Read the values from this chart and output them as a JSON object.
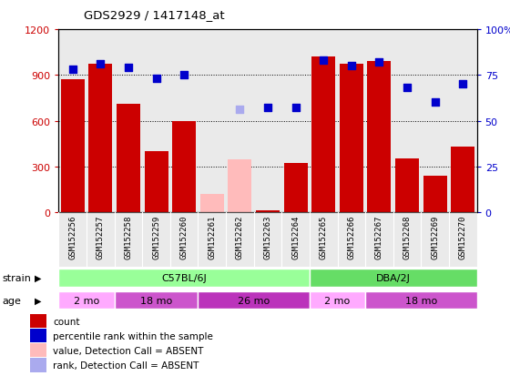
{
  "title": "GDS2929 / 1417148_at",
  "samples": [
    "GSM152256",
    "GSM152257",
    "GSM152258",
    "GSM152259",
    "GSM152260",
    "GSM152261",
    "GSM152262",
    "GSM152263",
    "GSM152264",
    "GSM152265",
    "GSM152266",
    "GSM152267",
    "GSM152268",
    "GSM152269",
    "GSM152270"
  ],
  "bar_values": [
    870,
    975,
    710,
    400,
    600,
    120,
    345,
    10,
    320,
    1020,
    975,
    990,
    350,
    240,
    430
  ],
  "bar_absent": [
    false,
    false,
    false,
    false,
    false,
    true,
    true,
    false,
    false,
    false,
    false,
    false,
    false,
    false,
    false
  ],
  "percentile_values": [
    78,
    81,
    79,
    73,
    75,
    null,
    56,
    57,
    57,
    83,
    80,
    82,
    68,
    60,
    70
  ],
  "percentile_absent": [
    false,
    false,
    false,
    false,
    false,
    null,
    true,
    false,
    false,
    false,
    false,
    false,
    false,
    false,
    false
  ],
  "ylim_left": [
    0,
    1200
  ],
  "ylim_right": [
    0,
    100
  ],
  "yticks_left": [
    0,
    300,
    600,
    900,
    1200
  ],
  "ytick_labels_left": [
    "0",
    "300",
    "600",
    "900",
    "1200"
  ],
  "ytick_labels_right": [
    "0",
    "25",
    "50",
    "75",
    "100%"
  ],
  "bar_color_present": "#cc0000",
  "bar_color_absent": "#ffbbbb",
  "dot_color_present": "#0000cc",
  "dot_color_absent": "#aaaaee",
  "col_bg_color": "#cccccc",
  "strain_groups": [
    {
      "label": "C57BL/6J",
      "start": 0,
      "end": 9,
      "color": "#99ff99"
    },
    {
      "label": "DBA/2J",
      "start": 9,
      "end": 15,
      "color": "#66dd66"
    }
  ],
  "age_groups": [
    {
      "label": "2 mo",
      "start": 0,
      "end": 2,
      "color": "#ffaaff"
    },
    {
      "label": "18 mo",
      "start": 2,
      "end": 5,
      "color": "#cc55cc"
    },
    {
      "label": "26 mo",
      "start": 5,
      "end": 9,
      "color": "#bb33bb"
    },
    {
      "label": "2 mo",
      "start": 9,
      "end": 11,
      "color": "#ffaaff"
    },
    {
      "label": "18 mo",
      "start": 11,
      "end": 15,
      "color": "#cc55cc"
    }
  ],
  "legend_items": [
    {
      "label": "count",
      "color": "#cc0000"
    },
    {
      "label": "percentile rank within the sample",
      "color": "#0000cc"
    },
    {
      "label": "value, Detection Call = ABSENT",
      "color": "#ffbbbb"
    },
    {
      "label": "rank, Detection Call = ABSENT",
      "color": "#aaaaee"
    }
  ]
}
